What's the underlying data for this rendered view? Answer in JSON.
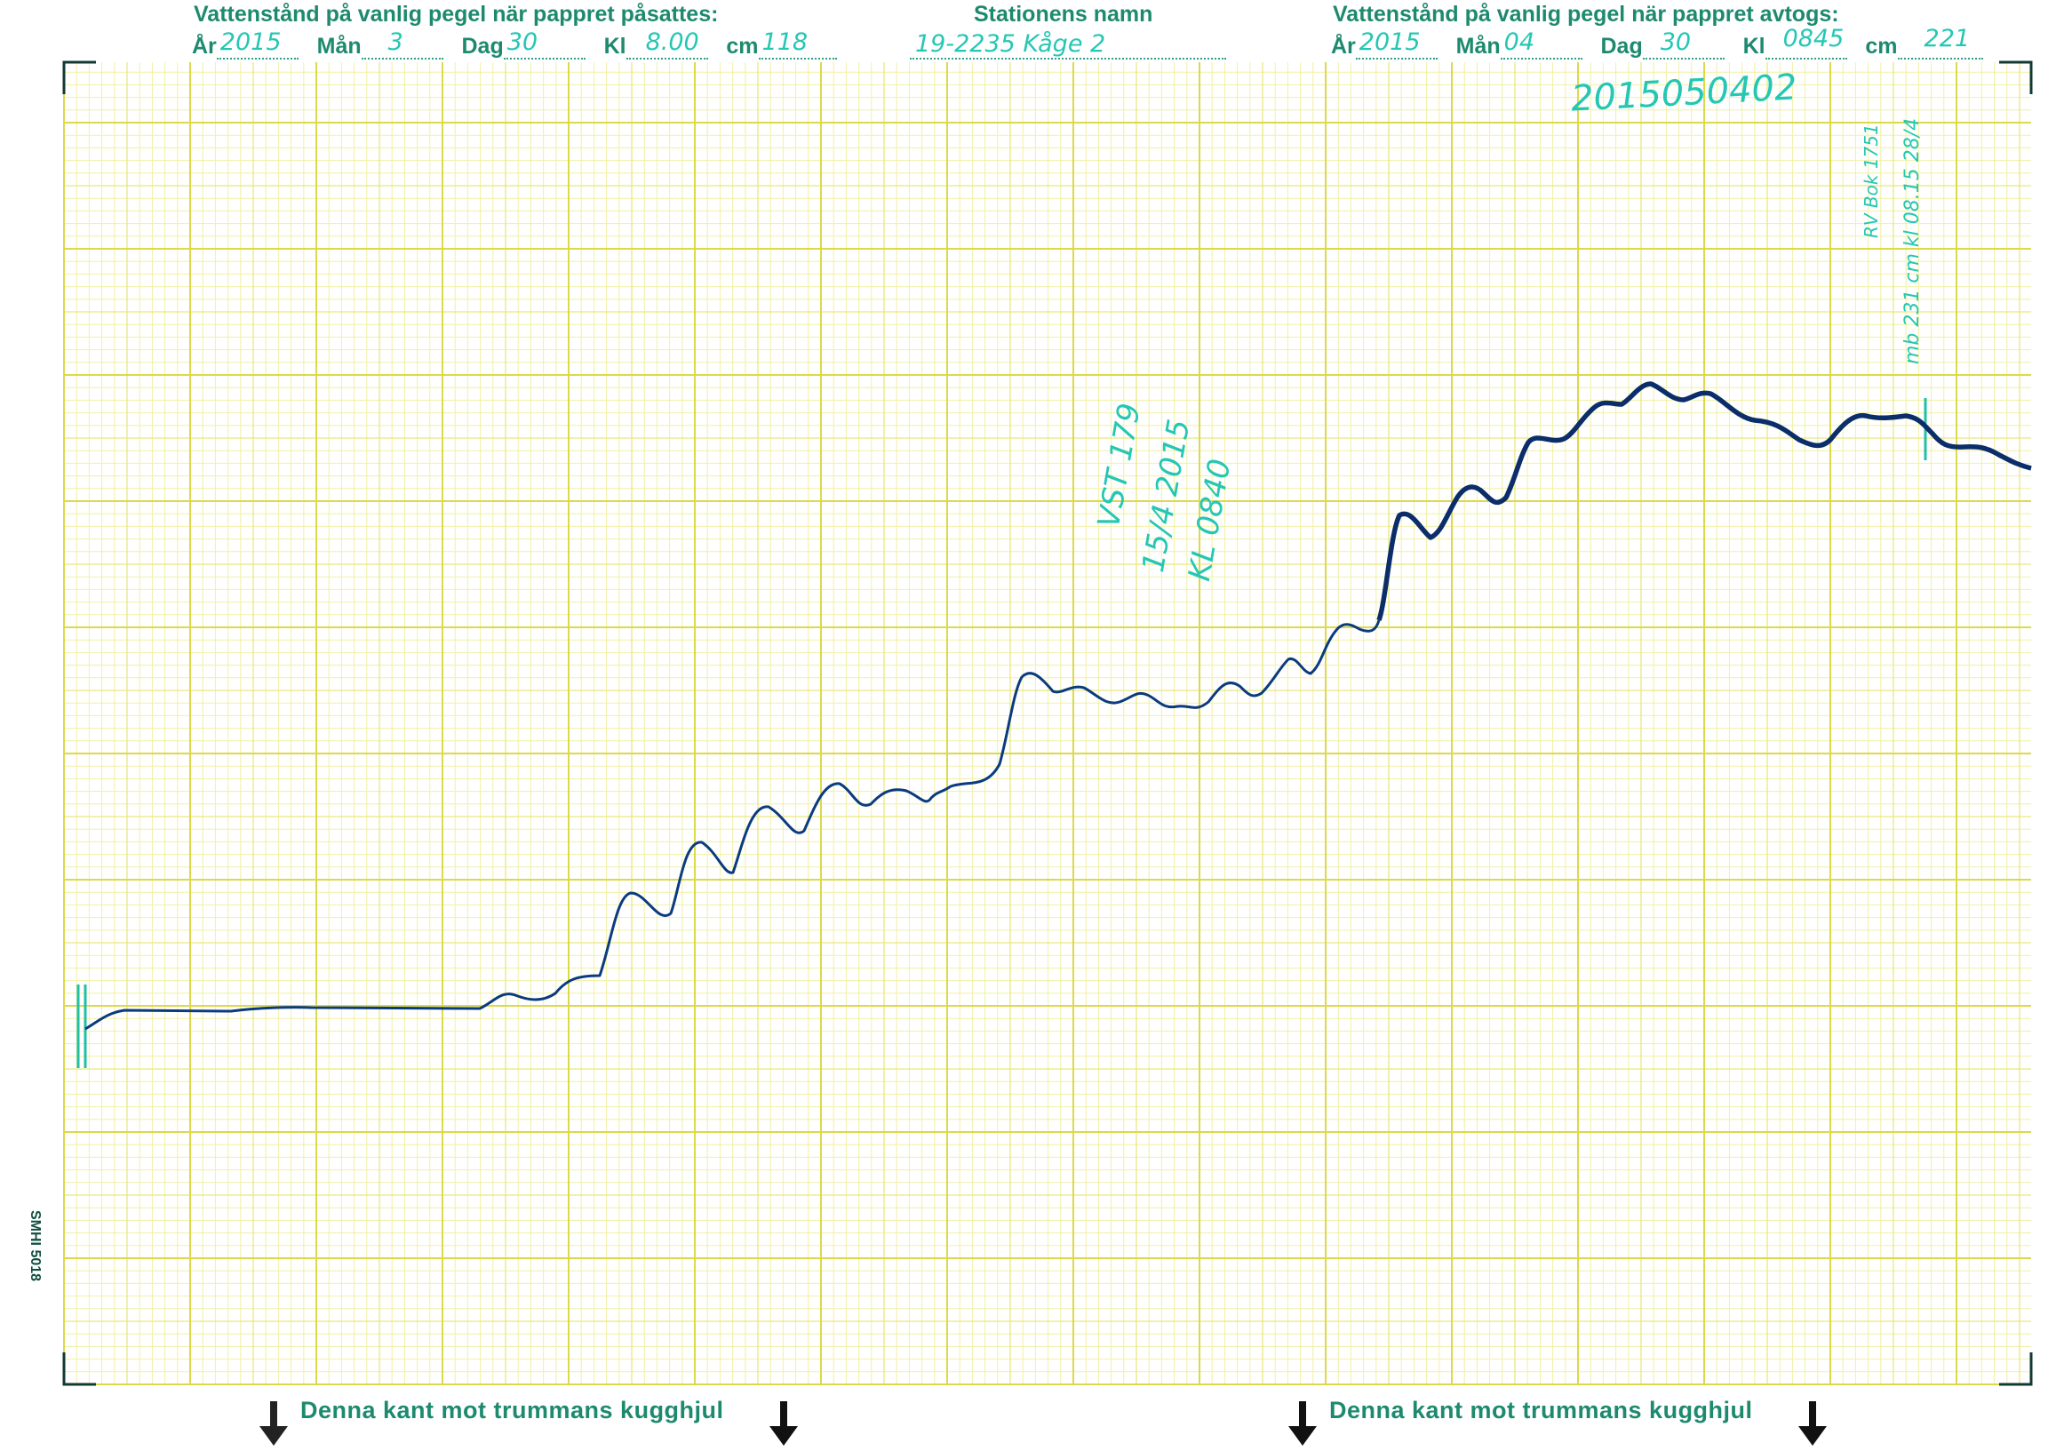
{
  "header_left": {
    "title": "Vattenstånd på vanlig pegel när pappret påsattes:",
    "ar_label": "År",
    "ar_value": "2015",
    "man_label": "Mån",
    "man_value": "3",
    "dag_label": "Dag",
    "dag_value": "30",
    "kl_label": "Kl",
    "kl_value": "8.00",
    "cm_label": "cm",
    "cm_value": "118"
  },
  "header_center": {
    "title": "Stationens namn",
    "station_name": "19-2235 Kåge 2"
  },
  "header_right": {
    "title": "Vattenstånd på vanlig pegel när pappret avtogs:",
    "ar_label": "År",
    "ar_value": "2015",
    "man_label": "Mån",
    "man_value": "04",
    "dag_label": "Dag",
    "dag_value": "30",
    "kl_label": "Kl",
    "kl_value": "0845",
    "cm_label": "cm",
    "cm_value": "221"
  },
  "annotations": {
    "stamp_code": "2015050402",
    "vst_note_1": "VST 179",
    "vst_note_2": "15/4 2015",
    "vst_note_3": "KL 0840",
    "rv_note_1": "RV Bok 1751",
    "rv_note_2": "mb 231 cm   kl 08.15  28/4"
  },
  "footer": {
    "left_label": "Denna kant mot trummans kugghjul",
    "right_label": "Denna kant mot trummans kugghjul"
  },
  "side_label": "SMHI 5018",
  "colors": {
    "grid_fine": "#f1f0a6",
    "grid_mid": "#e9e77f",
    "grid_major": "#dcd94a",
    "ink_trace": "#0b3b7f",
    "print_green": "#1d8a6f",
    "handwriting": "#25c7b4"
  }
}
